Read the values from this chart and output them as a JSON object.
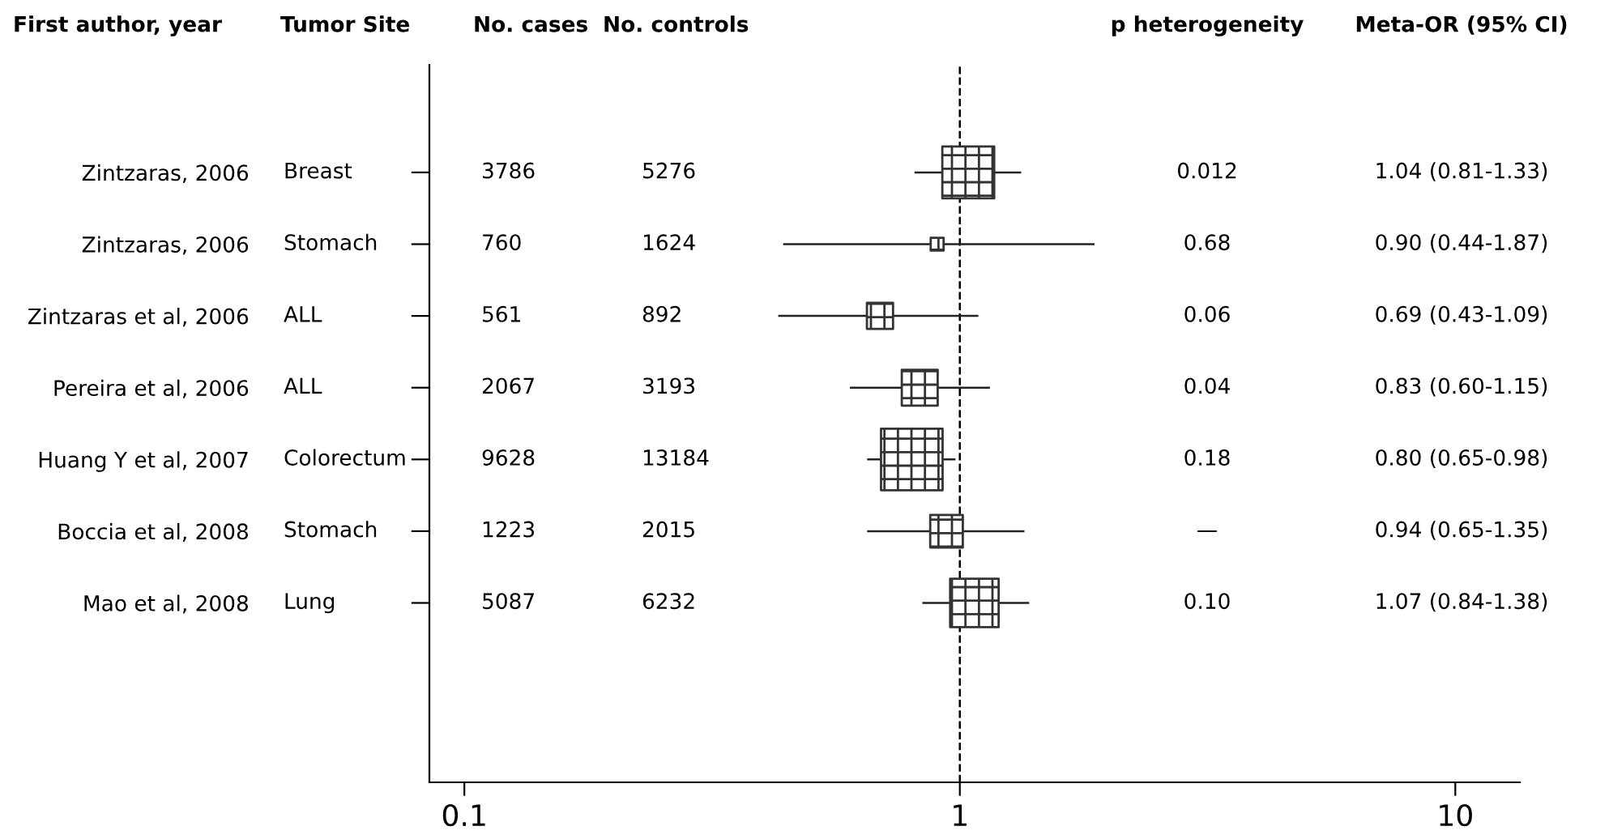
{
  "chart_data": {
    "type": "bubble",
    "orientation": "horizontal",
    "marker": "square",
    "log": "x",
    "ylabel": "First author, year",
    "categories": [
      "Zintzaras, 2006",
      "Zintzaras, 2006",
      "Zintzaras et al, 2006",
      "Pereira et al, 2006",
      "Huang Y et al, 2007",
      "Boccia et al, 2008",
      "Mao et al, 2008"
    ],
    "values": [
      1.04,
      0.9,
      0.69,
      0.83,
      0.8,
      0.94,
      1.07
    ],
    "errors": [
      [
        0.81,
        1.33
      ],
      [
        0.44,
        1.87
      ],
      [
        0.43,
        1.09
      ],
      [
        0.6,
        1.15
      ],
      [
        0.65,
        0.98
      ],
      [
        0.65,
        1.35
      ],
      [
        0.84,
        1.38
      ]
    ],
    "sizes": [
      0.71,
      0.044,
      0.18,
      0.34,
      1,
      0.28,
      0.62
    ],
    "color": "#333333",
    "annotations": [
      "Tumor Site",
      "No. cases",
      "No. controls",
      "p heterogeneity",
      "Meta-OR (95% CI)",
      "Breast",
      "3786",
      "5276",
      "0.012",
      "1.04 (0.81-1.33)",
      "Stomach",
      "760",
      "1624",
      "0.68",
      "0.90 (0.44-1.87)",
      "ALL",
      "561",
      "892",
      "0.06",
      "0.69 (0.43-1.09)",
      "ALL",
      "2067",
      "3193",
      "0.04",
      "0.83 (0.60-1.15)",
      "Colorectum",
      "9628",
      "13184",
      "0.18",
      "0.80 (0.65-0.98)",
      "Stomach",
      "1223",
      "2015",
      "—",
      "0.94 (0.65-1.35)",
      "Lung",
      "5087",
      "6232",
      "0.10",
      "1.07 (0.84-1.38)"
    ],
    "xlim": [
      0.085,
      13.5
    ],
    "xticks": [
      0.1,
      1,
      10
    ],
    "ref_lines": [
      {
        "axis": "x",
        "value": 1,
        "color": "#000000",
        "line_style": "dashed"
      }
    ]
  }
}
